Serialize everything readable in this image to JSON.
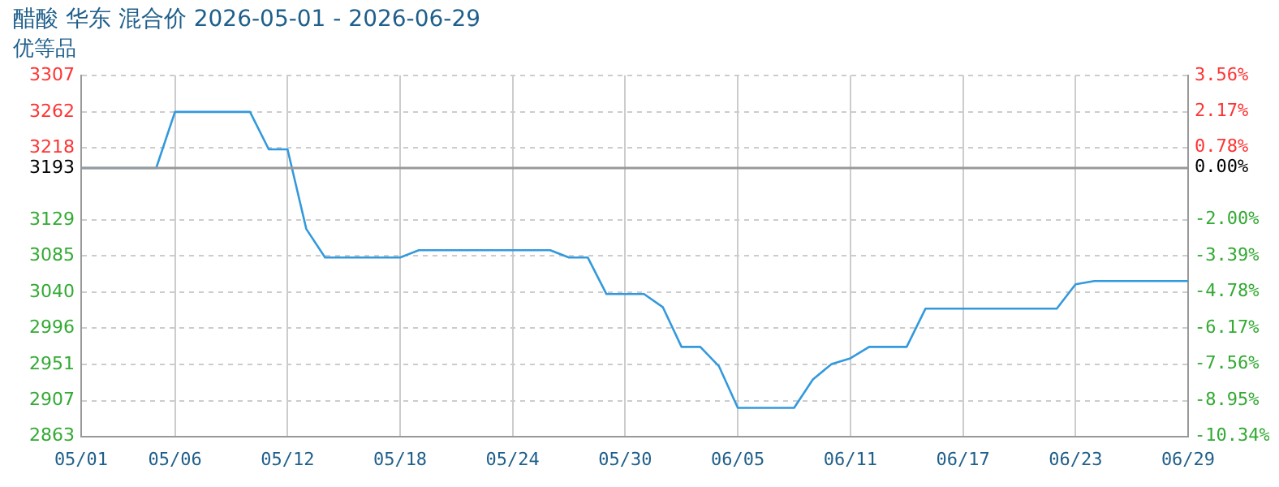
{
  "chart_data": {
    "type": "line",
    "title": "醋酸 华东 混合价 2026-05-01 - 2026-06-29",
    "subtitle": "优等品",
    "x": [
      "2026-05-01",
      "2026-05-05",
      "2026-05-06",
      "2026-05-10",
      "2026-05-11",
      "2026-05-12",
      "2026-05-13",
      "2026-05-14",
      "2026-05-18",
      "2026-05-19",
      "2026-05-26",
      "2026-05-27",
      "2026-05-28",
      "2026-05-29",
      "2026-05-31",
      "2026-06-01",
      "2026-06-02",
      "2026-06-03",
      "2026-06-04",
      "2026-06-05",
      "2026-06-08",
      "2026-06-09",
      "2026-06-10",
      "2026-06-11",
      "2026-06-12",
      "2026-06-14",
      "2026-06-15",
      "2026-06-22",
      "2026-06-23",
      "2026-06-24",
      "2026-06-29"
    ],
    "series": [
      {
        "color": "#3399dd",
        "values": [
          3193,
          3193,
          3262,
          3262,
          3216,
          3216,
          3118,
          3083,
          3083,
          3092,
          3092,
          3083,
          3083,
          3038,
          3038,
          3022,
          2973,
          2973,
          2949,
          2898,
          2898,
          2933,
          2952,
          2959,
          2973,
          2973,
          3020,
          3020,
          3050,
          3054,
          3054
        ]
      }
    ],
    "xlim": [
      "2026-05-01",
      "2026-06-29"
    ],
    "xticks": [
      {
        "value": "2026-05-01",
        "label": "05/01"
      },
      {
        "value": "2026-05-06",
        "label": "05/06"
      },
      {
        "value": "2026-05-12",
        "label": "05/12"
      },
      {
        "value": "2026-05-18",
        "label": "05/18"
      },
      {
        "value": "2026-05-24",
        "label": "05/24"
      },
      {
        "value": "2026-05-30",
        "label": "05/30"
      },
      {
        "value": "2026-06-05",
        "label": "06/05"
      },
      {
        "value": "2026-06-11",
        "label": "06/11"
      },
      {
        "value": "2026-06-17",
        "label": "06/17"
      },
      {
        "value": "2026-06-23",
        "label": "06/23"
      },
      {
        "value": "2026-06-29",
        "label": "06/29"
      }
    ],
    "ylim": [
      2863,
      3307
    ],
    "yticks": [
      2863,
      2907,
      2951,
      2996,
      3040,
      3085,
      3129,
      3193,
      3218,
      3262,
      3307
    ],
    "y2lim": [
      -10.34,
      3.56
    ],
    "y2ticks": [
      {
        "value": -10.34,
        "label": "-10.34%"
      },
      {
        "value": -8.95,
        "label": "-8.95%"
      },
      {
        "value": -7.56,
        "label": "-7.56%"
      },
      {
        "value": -6.17,
        "label": "-6.17%"
      },
      {
        "value": -4.78,
        "label": "-4.78%"
      },
      {
        "value": -3.39,
        "label": "-3.39%"
      },
      {
        "value": -2,
        "label": "-2.00%"
      },
      {
        "value": 0,
        "label": "0.00%"
      },
      {
        "value": 0.78,
        "label": "0.78%"
      },
      {
        "value": 2.17,
        "label": "2.17%"
      },
      {
        "value": 3.56,
        "label": "3.56%"
      }
    ],
    "ref_lines": [
      {
        "axis": "y",
        "value": 3193,
        "color": "#999999"
      }
    ],
    "grid": true,
    "legend": false,
    "marker": "none",
    "line_style": "solid"
  }
}
